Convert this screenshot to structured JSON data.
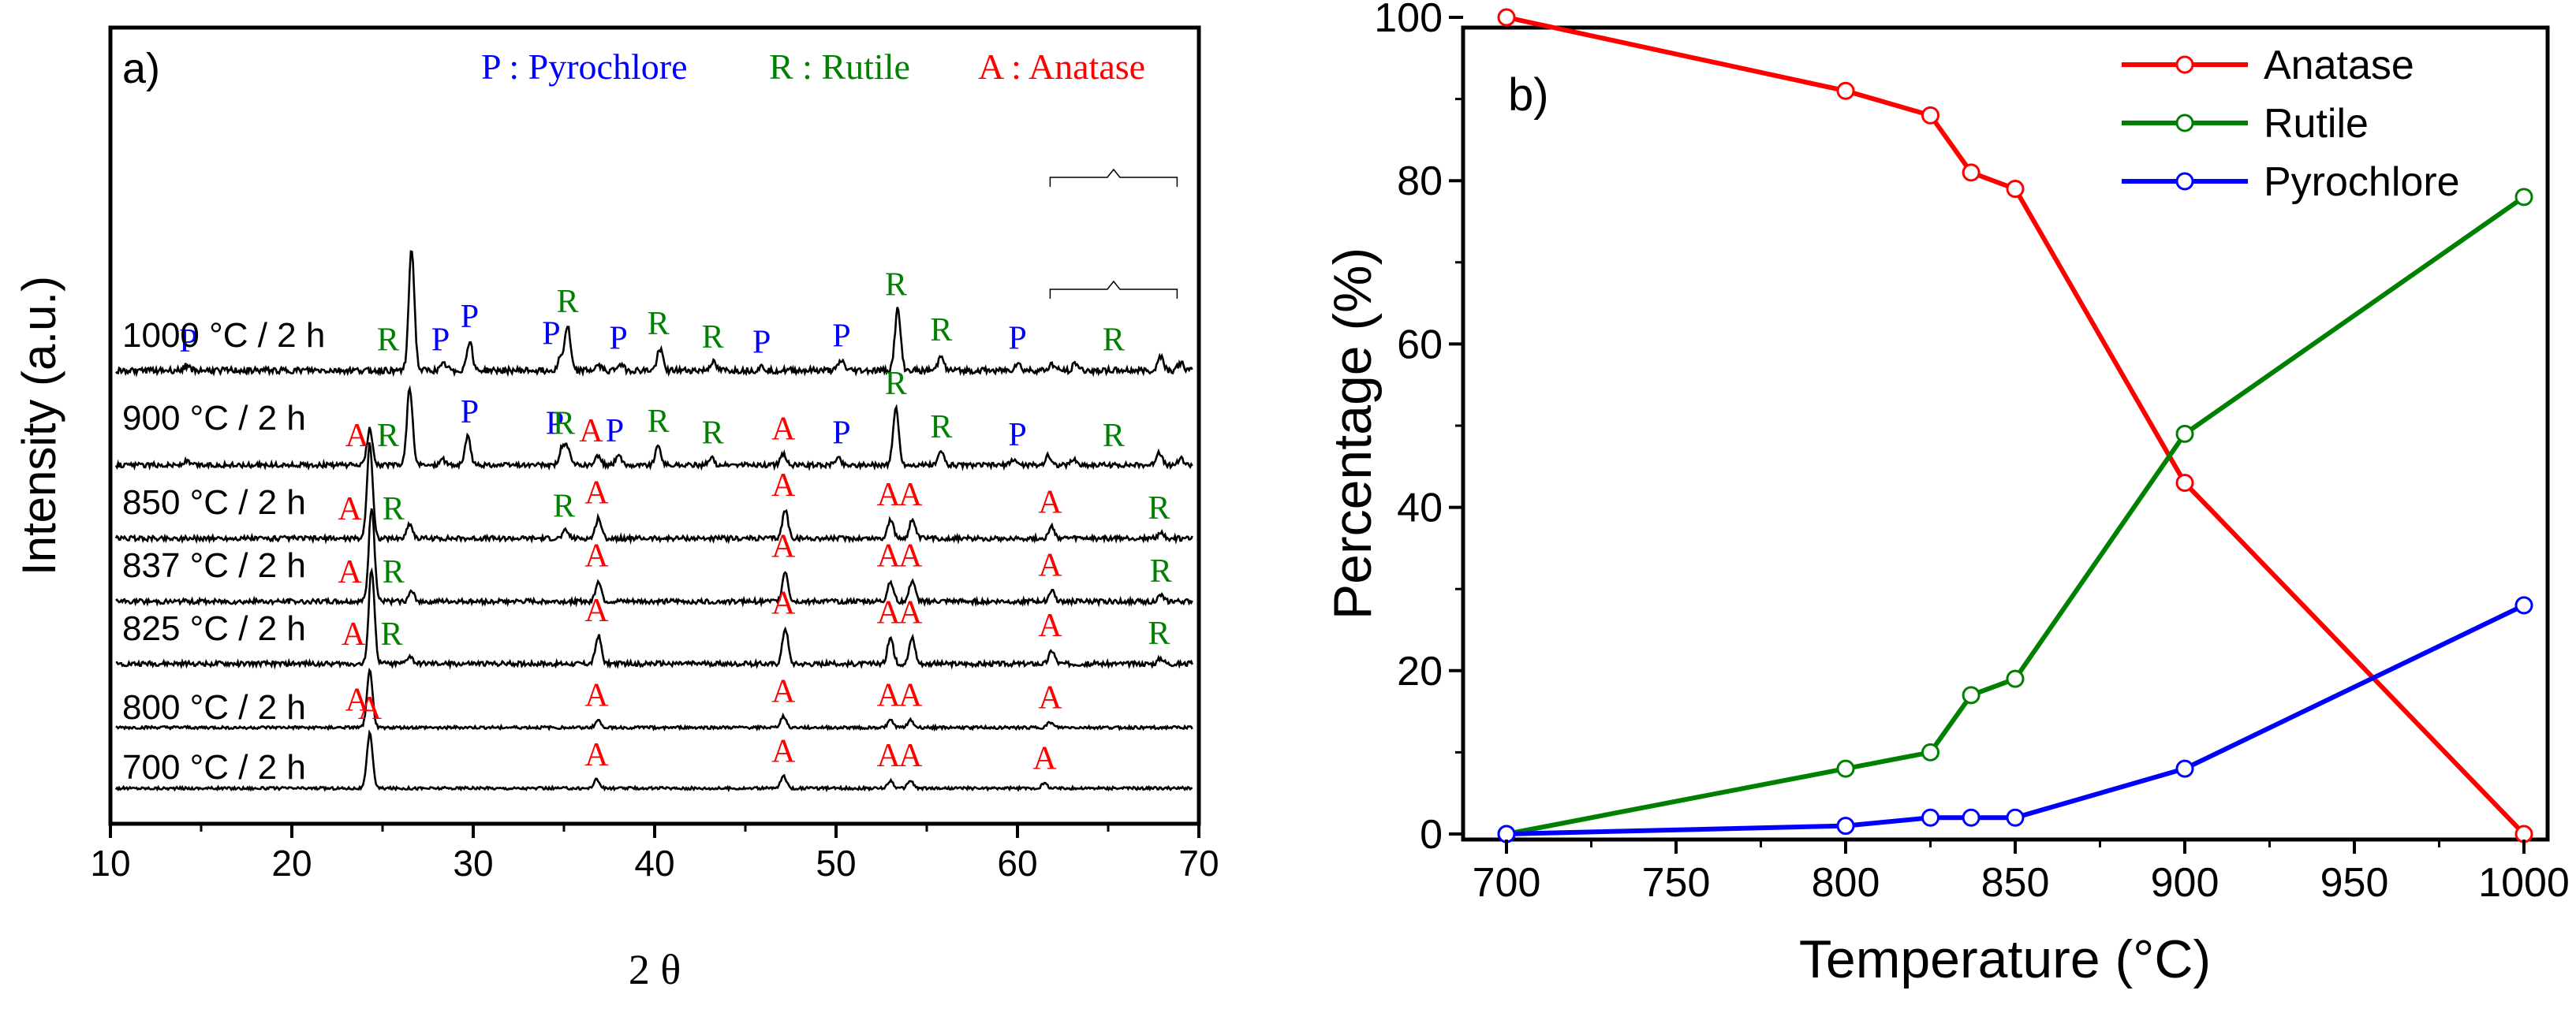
{
  "chart_data": [
    {
      "id": "a",
      "type": "line",
      "panel_label": "a)",
      "xlabel": "2 θ",
      "ylabel": "Intensity (a.u.)",
      "xlim": [
        10,
        70
      ],
      "xticks": [
        10,
        20,
        30,
        40,
        50,
        60,
        70
      ],
      "legend_text": {
        "P": "P : Pyrochlore",
        "R": "R : Rutile",
        "A": "A : Anatase"
      },
      "phase_colors": {
        "A": "#ff0000",
        "R": "#008000",
        "P": "#0000ff"
      },
      "series": [
        {
          "name": "700 °C / 2 h",
          "peaks": [
            [
              24.3,
              1.0
            ],
            [
              36.8,
              0.16
            ],
            [
              47.1,
              0.22
            ],
            [
              53.0,
              0.14
            ],
            [
              54.1,
              0.14
            ],
            [
              61.5,
              0.09
            ]
          ],
          "markers": [
            {
              "t": "A",
              "x": 24.3
            },
            {
              "t": "A",
              "x": 36.8
            },
            {
              "t": "A",
              "x": 47.1
            },
            {
              "t": "A",
              "x": 52.9
            },
            {
              "t": "A",
              "x": 54.1
            },
            {
              "t": "A",
              "x": 61.5
            }
          ]
        },
        {
          "name": "800 °C / 2 h",
          "peaks": [
            [
              24.3,
              1.0
            ],
            [
              36.9,
              0.13
            ],
            [
              47.1,
              0.2
            ],
            [
              53.0,
              0.13
            ],
            [
              54.1,
              0.13
            ],
            [
              61.8,
              0.09
            ]
          ],
          "markers": [
            {
              "t": "A",
              "x": 23.6
            },
            {
              "t": "A",
              "x": 36.8
            },
            {
              "t": "A",
              "x": 47.1
            },
            {
              "t": "A",
              "x": 52.9
            },
            {
              "t": "A",
              "x": 54.1
            },
            {
              "t": "A",
              "x": 61.8
            }
          ]
        },
        {
          "name": "825 °C / 2 h",
          "peaks": [
            [
              24.4,
              1.0
            ],
            [
              26.5,
              0.08
            ],
            [
              36.9,
              0.3
            ],
            [
              47.2,
              0.38
            ],
            [
              53.0,
              0.28
            ],
            [
              54.2,
              0.28
            ],
            [
              61.9,
              0.14
            ],
            [
              67.9,
              0.06
            ]
          ],
          "markers": [
            {
              "t": "A",
              "x": 23.4
            },
            {
              "t": "R",
              "x": 25.5
            },
            {
              "t": "A",
              "x": 36.8
            },
            {
              "t": "A",
              "x": 47.1
            },
            {
              "t": "A",
              "x": 52.9
            },
            {
              "t": "A",
              "x": 54.1
            },
            {
              "t": "A",
              "x": 61.8
            },
            {
              "t": "R",
              "x": 67.8
            }
          ]
        },
        {
          "name": "837 °C / 2 h",
          "peaks": [
            [
              24.4,
              1.0
            ],
            [
              26.6,
              0.1
            ],
            [
              36.9,
              0.22
            ],
            [
              47.2,
              0.32
            ],
            [
              53.0,
              0.22
            ],
            [
              54.2,
              0.22
            ],
            [
              61.9,
              0.12
            ],
            [
              67.9,
              0.06
            ]
          ],
          "markers": [
            {
              "t": "A",
              "x": 23.2
            },
            {
              "t": "R",
              "x": 25.6
            },
            {
              "t": "A",
              "x": 36.8
            },
            {
              "t": "A",
              "x": 47.1
            },
            {
              "t": "A",
              "x": 52.9
            },
            {
              "t": "A",
              "x": 54.1
            },
            {
              "t": "A",
              "x": 61.8
            },
            {
              "t": "R",
              "x": 67.9
            }
          ]
        },
        {
          "name": "850 °C / 2 h",
          "peaks": [
            [
              24.3,
              1.0
            ],
            [
              26.5,
              0.16
            ],
            [
              35.1,
              0.08
            ],
            [
              36.9,
              0.22
            ],
            [
              47.2,
              0.3
            ],
            [
              53.0,
              0.2
            ],
            [
              54.2,
              0.2
            ],
            [
              61.9,
              0.12
            ],
            [
              67.9,
              0.06
            ]
          ],
          "markers": [
            {
              "t": "A",
              "x": 23.2
            },
            {
              "t": "R",
              "x": 25.6
            },
            {
              "t": "R",
              "x": 35.0
            },
            {
              "t": "A",
              "x": 36.8
            },
            {
              "t": "A",
              "x": 47.1
            },
            {
              "t": "A",
              "x": 52.9
            },
            {
              "t": "A",
              "x": 54.1
            },
            {
              "t": "A",
              "x": 61.8
            },
            {
              "t": "R",
              "x": 67.8
            }
          ]
        },
        {
          "name": "900 °C / 2 h",
          "peaks": [
            [
              14.2,
              0.04
            ],
            [
              24.3,
              0.38
            ],
            [
              26.5,
              0.82
            ],
            [
              28.3,
              0.06
            ],
            [
              29.7,
              0.3
            ],
            [
              34.9,
              0.18
            ],
            [
              35.2,
              0.16
            ],
            [
              36.9,
              0.1
            ],
            [
              38.0,
              0.1
            ],
            [
              40.2,
              0.2
            ],
            [
              43.1,
              0.08
            ],
            [
              47.1,
              0.12
            ],
            [
              50.1,
              0.08
            ],
            [
              53.3,
              0.6
            ],
            [
              55.8,
              0.14
            ],
            [
              59.8,
              0.06
            ],
            [
              61.7,
              0.1
            ],
            [
              63.1,
              0.06
            ],
            [
              67.8,
              0.14
            ],
            [
              69.0,
              0.07
            ]
          ],
          "markers": [
            {
              "t": "A",
              "x": 23.6
            },
            {
              "t": "R",
              "x": 25.3
            },
            {
              "t": "P",
              "x": 29.8
            },
            {
              "t": "P",
              "x": 34.5
            },
            {
              "t": "R",
              "x": 35.0
            },
            {
              "t": "A",
              "x": 36.5
            },
            {
              "t": "P",
              "x": 37.8
            },
            {
              "t": "R",
              "x": 40.2
            },
            {
              "t": "R",
              "x": 43.2
            },
            {
              "t": "A",
              "x": 47.1
            },
            {
              "t": "P",
              "x": 50.3
            },
            {
              "t": "R",
              "x": 53.3
            },
            {
              "t": "R",
              "x": 55.8
            },
            {
              "t": "P",
              "x": 60.0
            },
            {
              "t": "R",
              "x": 65.3
            }
          ]
        },
        {
          "name": "1000 °C / 2 h",
          "peaks": [
            [
              14.2,
              0.04
            ],
            [
              26.6,
              1.0
            ],
            [
              28.4,
              0.05
            ],
            [
              29.8,
              0.24
            ],
            [
              34.8,
              0.1
            ],
            [
              35.2,
              0.36
            ],
            [
              36.9,
              0.04
            ],
            [
              38.1,
              0.06
            ],
            [
              40.3,
              0.18
            ],
            [
              43.2,
              0.07
            ],
            [
              45.9,
              0.03
            ],
            [
              50.3,
              0.08
            ],
            [
              53.4,
              0.5
            ],
            [
              55.8,
              0.13
            ],
            [
              60.0,
              0.06
            ],
            [
              61.9,
              0.05
            ],
            [
              63.2,
              0.06
            ],
            [
              67.9,
              0.12
            ],
            [
              69.0,
              0.06
            ]
          ],
          "markers": [
            {
              "t": "P",
              "x": 14.3
            },
            {
              "t": "R",
              "x": 25.3
            },
            {
              "t": "P",
              "x": 28.2
            },
            {
              "t": "P",
              "x": 29.8
            },
            {
              "t": "P",
              "x": 34.3
            },
            {
              "t": "R",
              "x": 35.2
            },
            {
              "t": "P",
              "x": 38.0
            },
            {
              "t": "R",
              "x": 40.2
            },
            {
              "t": "R",
              "x": 43.2
            },
            {
              "t": "P",
              "x": 45.9
            },
            {
              "t": "P",
              "x": 50.3
            },
            {
              "t": "R",
              "x": 53.3
            },
            {
              "t": "R",
              "x": 55.8
            },
            {
              "t": "P",
              "x": 60.0
            },
            {
              "t": "R",
              "x": 65.3
            }
          ]
        }
      ]
    },
    {
      "id": "b",
      "type": "line",
      "panel_label": "b)",
      "xlabel": "Temperature (°C)",
      "ylabel": "Percentage (%)",
      "xlim": [
        700,
        1000
      ],
      "ylim": [
        0,
        100
      ],
      "xticks": [
        700,
        750,
        800,
        850,
        900,
        950,
        1000
      ],
      "yticks": [
        0,
        20,
        40,
        60,
        80,
        100
      ],
      "x": [
        700,
        800,
        825,
        837,
        850,
        900,
        1000
      ],
      "series": [
        {
          "name": "Anatase",
          "color": "#ff0000",
          "values": [
            100,
            91,
            88,
            81,
            79,
            43,
            0
          ]
        },
        {
          "name": "Rutile",
          "color": "#008000",
          "values": [
            0,
            8,
            10,
            17,
            19,
            49,
            78
          ]
        },
        {
          "name": "Pyrochlore",
          "color": "#0000ff",
          "values": [
            0,
            1,
            2,
            2,
            2,
            8,
            28
          ]
        }
      ],
      "legend_position": "top-right"
    }
  ]
}
